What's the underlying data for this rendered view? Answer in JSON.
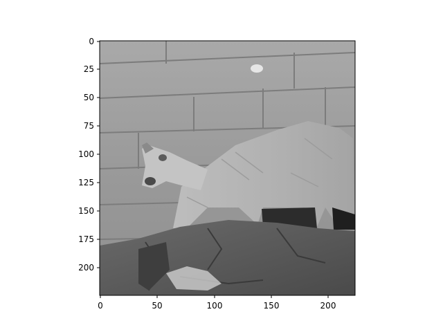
{
  "figure": {
    "background": "#ffffff",
    "image_subject": "grayscale photo of a cougar walking on rocks in front of a stone wall",
    "colormap": "gray"
  },
  "axes": {
    "x_ticks": [
      "0",
      "50",
      "100",
      "150",
      "200"
    ],
    "y_ticks": [
      "0",
      "25",
      "50",
      "75",
      "100",
      "125",
      "150",
      "175",
      "200"
    ],
    "x_range": [
      0,
      224
    ],
    "y_range": [
      0,
      224
    ],
    "y_inverted": true
  }
}
